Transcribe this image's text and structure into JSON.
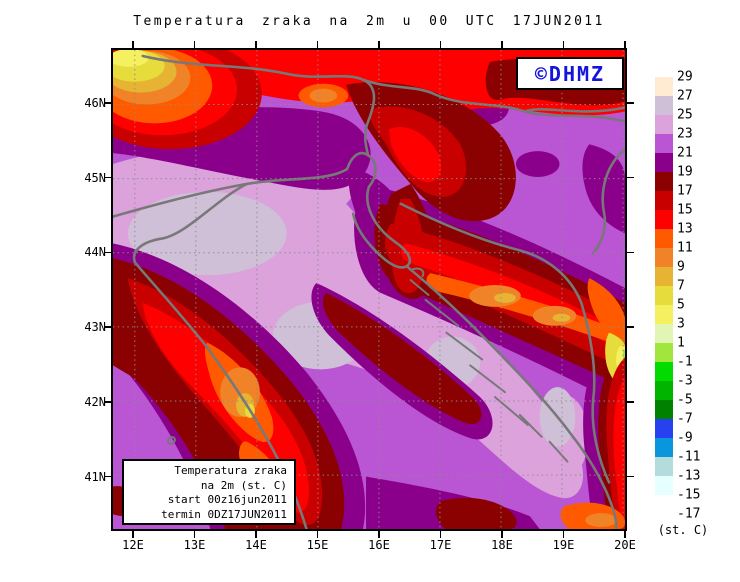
{
  "title": "Temperatura zraka na 2m u 00 UTC 17JUN2011",
  "logo": {
    "text": "©DHMZ"
  },
  "info_box": {
    "lines": [
      "Temperatura zraka",
      "na 2m (st. C)",
      "start 00z16jun2011",
      "termin 0DZ17JUN2011"
    ]
  },
  "axes": {
    "lat_labels": [
      "46N",
      "45N",
      "44N",
      "43N",
      "42N",
      "41N"
    ],
    "lon_labels": [
      "12E",
      "13E",
      "14E",
      "15E",
      "16E",
      "17E",
      "18E",
      "19E",
      "20E"
    ]
  },
  "legend": {
    "tick_labels": [
      "29",
      "27",
      "25",
      "23",
      "21",
      "19",
      "17",
      "15",
      "13",
      "11",
      "9",
      "7",
      "5",
      "3",
      "1",
      "-1",
      "-3",
      "-5",
      "-7",
      "-9",
      "-11",
      "-13",
      "-15",
      "-17"
    ],
    "colors": [
      "#FFEBD2",
      "#CFC0D8",
      "#DBA2DB",
      "#BA55D3",
      "#8B008B",
      "#8B0000",
      "#C80000",
      "#FF0000",
      "#FF5A00",
      "#F08228",
      "#E6B432",
      "#E6DC3C",
      "#F5F060",
      "#E1F5B4",
      "#A0E63C",
      "#00DC00",
      "#00B400",
      "#008200",
      "#2841F0",
      "#0A96DC",
      "#B4DCDC",
      "#E6FFFF",
      "#FFFFFF"
    ],
    "unit_label": "(st. C)"
  },
  "colors": {
    "logo_blue": "#1414DC",
    "coastline_gray": "#787878",
    "grid_gray": "#8C8C8C",
    "frame_black": "#000000",
    "background": "#FFFFFF"
  }
}
